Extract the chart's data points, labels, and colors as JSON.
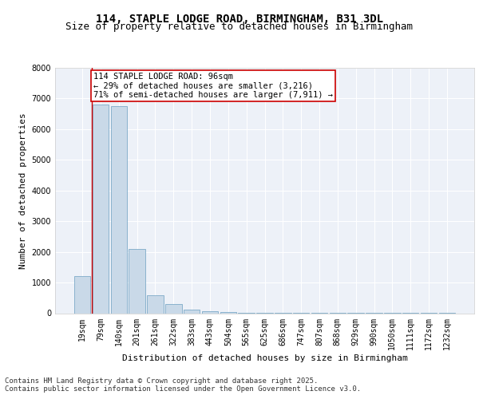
{
  "title_line1": "114, STAPLE LODGE ROAD, BIRMINGHAM, B31 3DL",
  "title_line2": "Size of property relative to detached houses in Birmingham",
  "xlabel": "Distribution of detached houses by size in Birmingham",
  "ylabel": "Number of detached properties",
  "categories": [
    "19sqm",
    "79sqm",
    "140sqm",
    "201sqm",
    "261sqm",
    "322sqm",
    "383sqm",
    "443sqm",
    "504sqm",
    "565sqm",
    "625sqm",
    "686sqm",
    "747sqm",
    "807sqm",
    "868sqm",
    "929sqm",
    "990sqm",
    "1050sqm",
    "1111sqm",
    "1172sqm",
    "1232sqm"
  ],
  "values": [
    1200,
    6800,
    6750,
    2100,
    580,
    310,
    120,
    55,
    30,
    15,
    10,
    5,
    3,
    3,
    2,
    2,
    1,
    1,
    1,
    1,
    1
  ],
  "bar_color": "#c9d9e8",
  "bar_edge_color": "#6a9fc0",
  "vline_x": 0.5,
  "vline_color": "#cc0000",
  "annotation_text": "114 STAPLE LODGE ROAD: 96sqm\n← 29% of detached houses are smaller (3,216)\n71% of semi-detached houses are larger (7,911) →",
  "annotation_box_color": "#ffffff",
  "annotation_box_edge": "#cc0000",
  "ylim": [
    0,
    8000
  ],
  "yticks": [
    0,
    1000,
    2000,
    3000,
    4000,
    5000,
    6000,
    7000,
    8000
  ],
  "footer_line1": "Contains HM Land Registry data © Crown copyright and database right 2025.",
  "footer_line2": "Contains public sector information licensed under the Open Government Licence v3.0.",
  "bg_color": "#ffffff",
  "plot_bg_color": "#edf1f8",
  "grid_color": "#ffffff",
  "title_fontsize": 10,
  "subtitle_fontsize": 9,
  "axis_label_fontsize": 8,
  "tick_fontsize": 7,
  "footer_fontsize": 6.5,
  "annot_fontsize": 7.5
}
